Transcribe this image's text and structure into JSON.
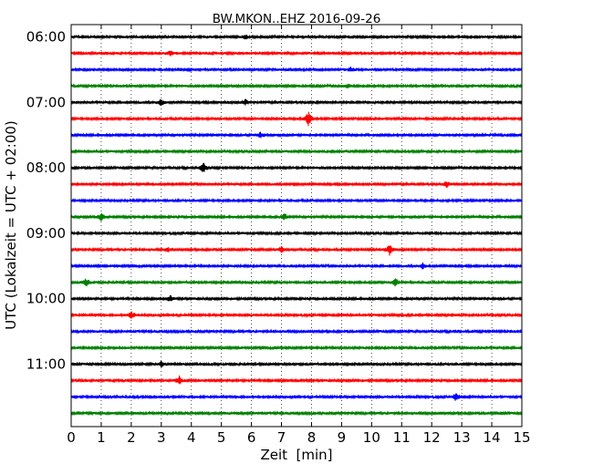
{
  "chart_data": {
    "type": "line",
    "title": "BW.MKON..EHZ 2016-09-26",
    "xlabel": "Zeit  [min]",
    "ylabel": "UTC (Lokalzeit = UTC + 02:00)",
    "xlim": [
      0,
      15
    ],
    "x_ticks": [
      "0",
      "1",
      "2",
      "3",
      "4",
      "5",
      "6",
      "7",
      "8",
      "9",
      "10",
      "11",
      "12",
      "13",
      "14",
      "15"
    ],
    "y_ticks": [
      "06:00",
      "07:00",
      "08:00",
      "09:00",
      "10:00",
      "11:00"
    ],
    "grid": "vertical dotted lines at each minute",
    "trace_colors": [
      "#000000",
      "#ff0000",
      "#0000ff",
      "#008000"
    ],
    "traces": [
      {
        "start": "06:00",
        "events": [
          {
            "x": 5.8,
            "amp": 0.3
          }
        ]
      },
      {
        "start": "06:15",
        "events": [
          {
            "x": 3.3,
            "amp": 0.3
          }
        ]
      },
      {
        "start": "06:30",
        "events": [
          {
            "x": 9.3,
            "amp": 0.3
          }
        ]
      },
      {
        "start": "06:45",
        "events": [
          {
            "x": 9.2,
            "amp": 0.3
          }
        ]
      },
      {
        "start": "07:00",
        "events": [
          {
            "x": 3.0,
            "amp": 0.5
          },
          {
            "x": 5.8,
            "amp": 0.35
          }
        ]
      },
      {
        "start": "07:15",
        "events": [
          {
            "x": 7.9,
            "amp": 1.0
          }
        ]
      },
      {
        "start": "07:30",
        "events": [
          {
            "x": 6.3,
            "amp": 0.35
          }
        ]
      },
      {
        "start": "07:45",
        "events": []
      },
      {
        "start": "08:00",
        "events": [
          {
            "x": 4.4,
            "amp": 0.7
          }
        ]
      },
      {
        "start": "08:15",
        "events": [
          {
            "x": 12.5,
            "amp": 0.4
          }
        ]
      },
      {
        "start": "08:30",
        "events": []
      },
      {
        "start": "08:45",
        "events": [
          {
            "x": 1.0,
            "amp": 0.5
          },
          {
            "x": 7.1,
            "amp": 0.4
          }
        ]
      },
      {
        "start": "09:00",
        "events": []
      },
      {
        "start": "09:15",
        "events": [
          {
            "x": 3.2,
            "amp": 0.35
          },
          {
            "x": 7.0,
            "amp": 0.35
          },
          {
            "x": 10.6,
            "amp": 0.75
          }
        ]
      },
      {
        "start": "09:30",
        "events": [
          {
            "x": 11.7,
            "amp": 0.4
          }
        ]
      },
      {
        "start": "09:45",
        "events": [
          {
            "x": 0.5,
            "amp": 0.55
          },
          {
            "x": 10.8,
            "amp": 0.55
          }
        ]
      },
      {
        "start": "10:00",
        "events": [
          {
            "x": 3.3,
            "amp": 0.4
          }
        ]
      },
      {
        "start": "10:15",
        "events": [
          {
            "x": 2.0,
            "amp": 0.55
          }
        ]
      },
      {
        "start": "10:30",
        "events": []
      },
      {
        "start": "10:45",
        "events": []
      },
      {
        "start": "11:00",
        "events": [
          {
            "x": 3.0,
            "amp": 0.35
          }
        ]
      },
      {
        "start": "11:15",
        "events": [
          {
            "x": 3.6,
            "amp": 0.6
          }
        ]
      },
      {
        "start": "11:30",
        "events": [
          {
            "x": 12.8,
            "amp": 0.6
          }
        ]
      },
      {
        "start": "11:45",
        "events": []
      }
    ]
  }
}
